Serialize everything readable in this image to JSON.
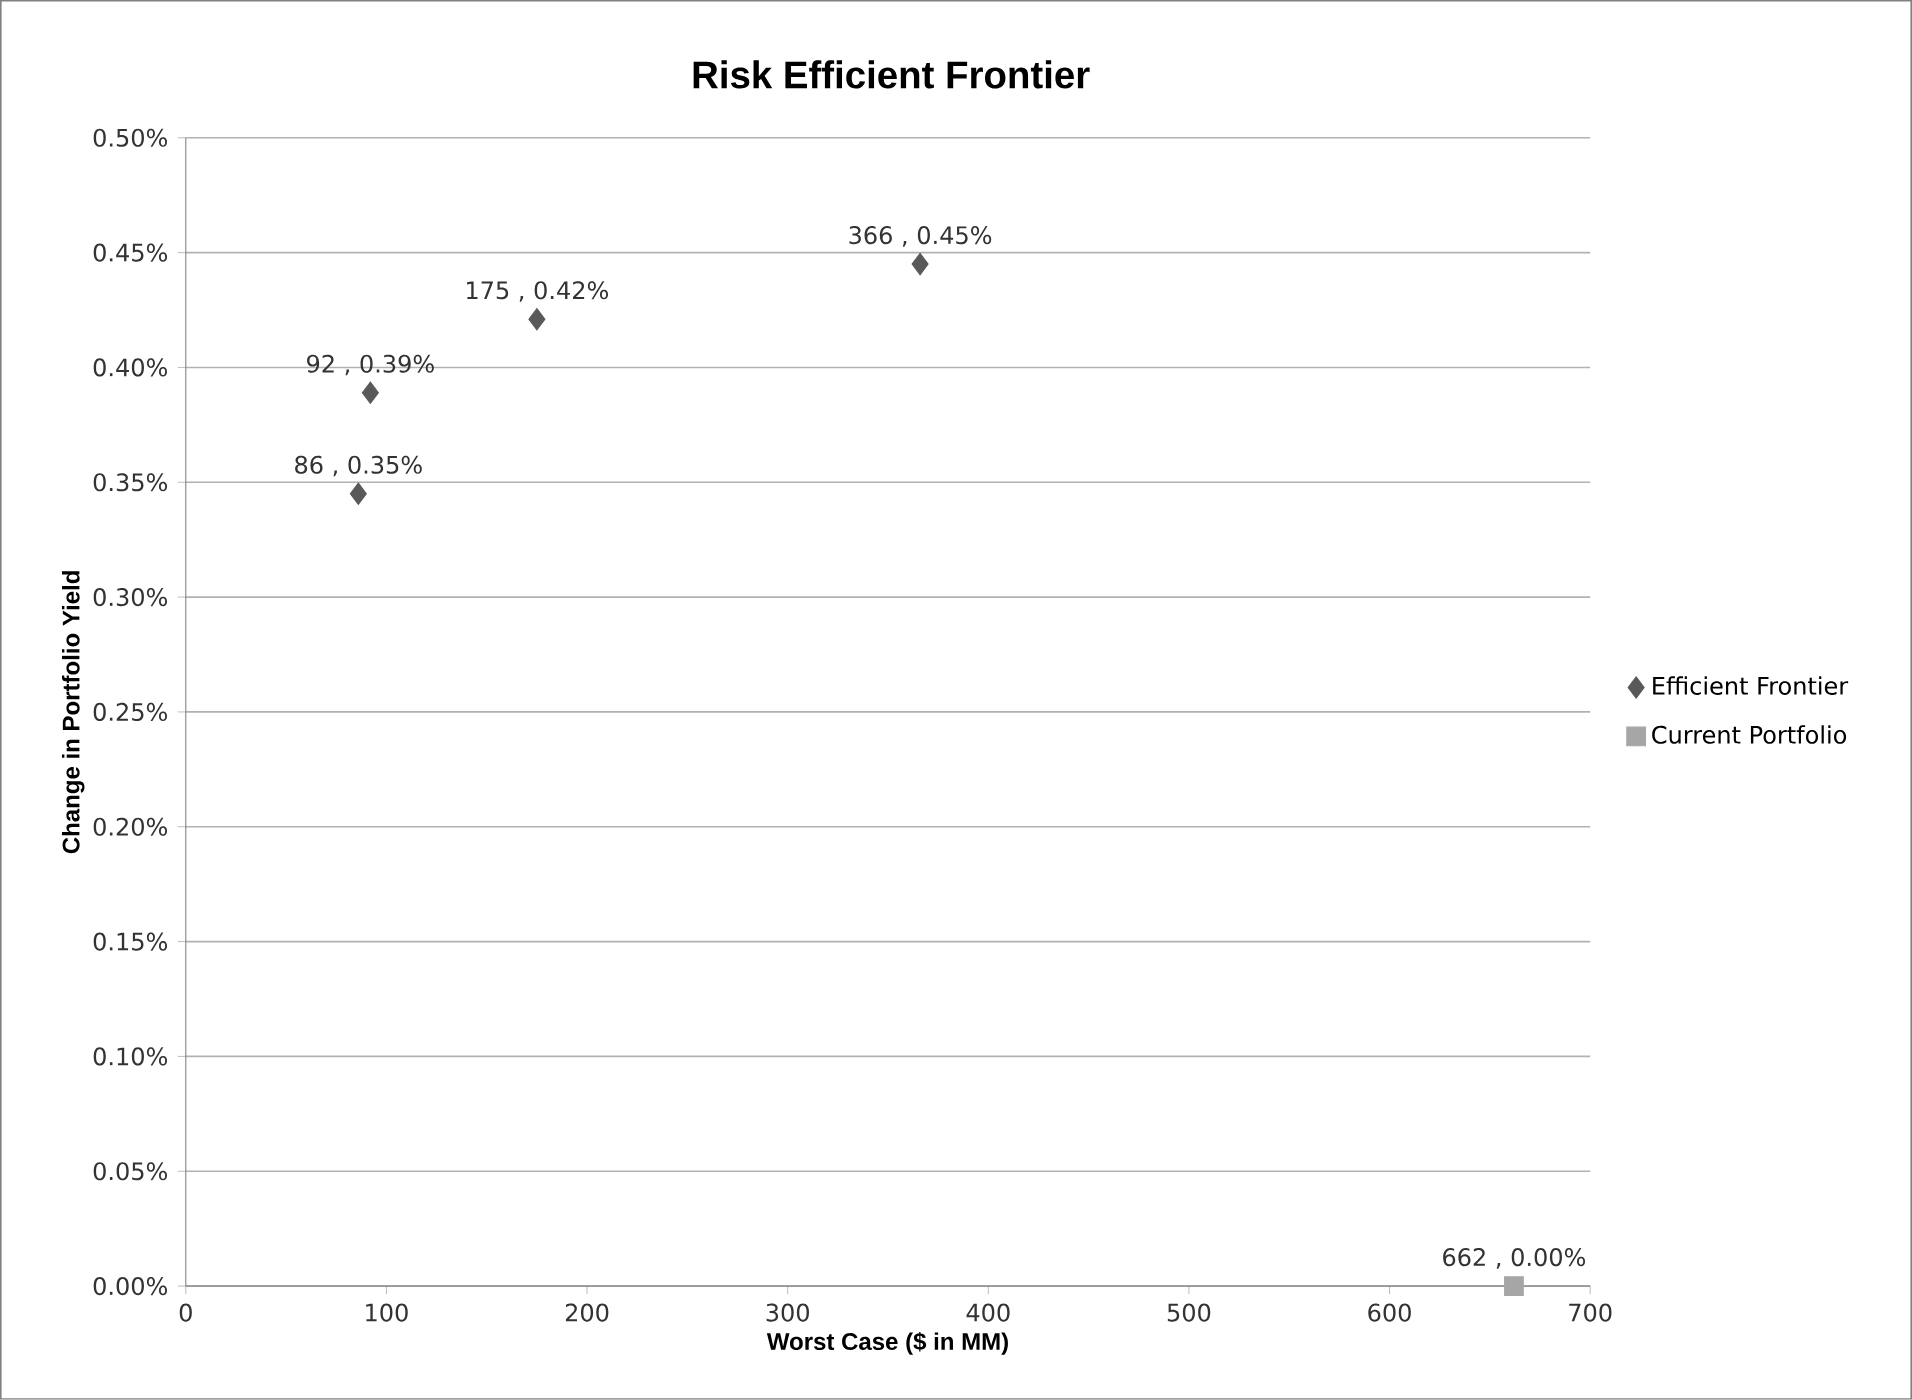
{
  "chart_data": {
    "type": "scatter",
    "title": "Risk Efficient Frontier",
    "xlabel": "Worst Case ($ in MM)",
    "ylabel": "Change in Portfolio Yield",
    "xlim": [
      0,
      700
    ],
    "xticks": [
      0,
      100,
      200,
      300,
      400,
      500,
      600,
      700
    ],
    "ylim": [
      0,
      0.5
    ],
    "yticks": [
      {
        "value": 0,
        "label": "0.00%"
      },
      {
        "value": 0.05,
        "label": "0.05%"
      },
      {
        "value": 0.1,
        "label": "0.10%"
      },
      {
        "value": 0.15,
        "label": "0.15%"
      },
      {
        "value": 0.2,
        "label": "0.20%"
      },
      {
        "value": 0.25,
        "label": "0.25%"
      },
      {
        "value": 0.3,
        "label": "0.30%"
      },
      {
        "value": 0.35,
        "label": "0.35%"
      },
      {
        "value": 0.4,
        "label": "0.40%"
      },
      {
        "value": 0.45,
        "label": "0.45%"
      },
      {
        "value": 0.5,
        "label": "0.50%"
      }
    ],
    "grid": "y",
    "legend": "right",
    "series": [
      {
        "name": "Efficient Frontier",
        "color": "#595959",
        "marker": "diamond",
        "x": [
          86,
          92,
          175,
          366
        ],
        "values": [
          0.345,
          0.389,
          0.421,
          0.445
        ],
        "value_labels": [
          "86 , 0.35%",
          "92 , 0.39%",
          "175 , 0.42%",
          "366 , 0.45%"
        ]
      },
      {
        "name": "Current Portfolio",
        "color": "#a6a6a6",
        "marker": "square",
        "x": [
          662
        ],
        "values": [
          0
        ],
        "value_labels": [
          "662 , 0.00%"
        ]
      }
    ]
  }
}
